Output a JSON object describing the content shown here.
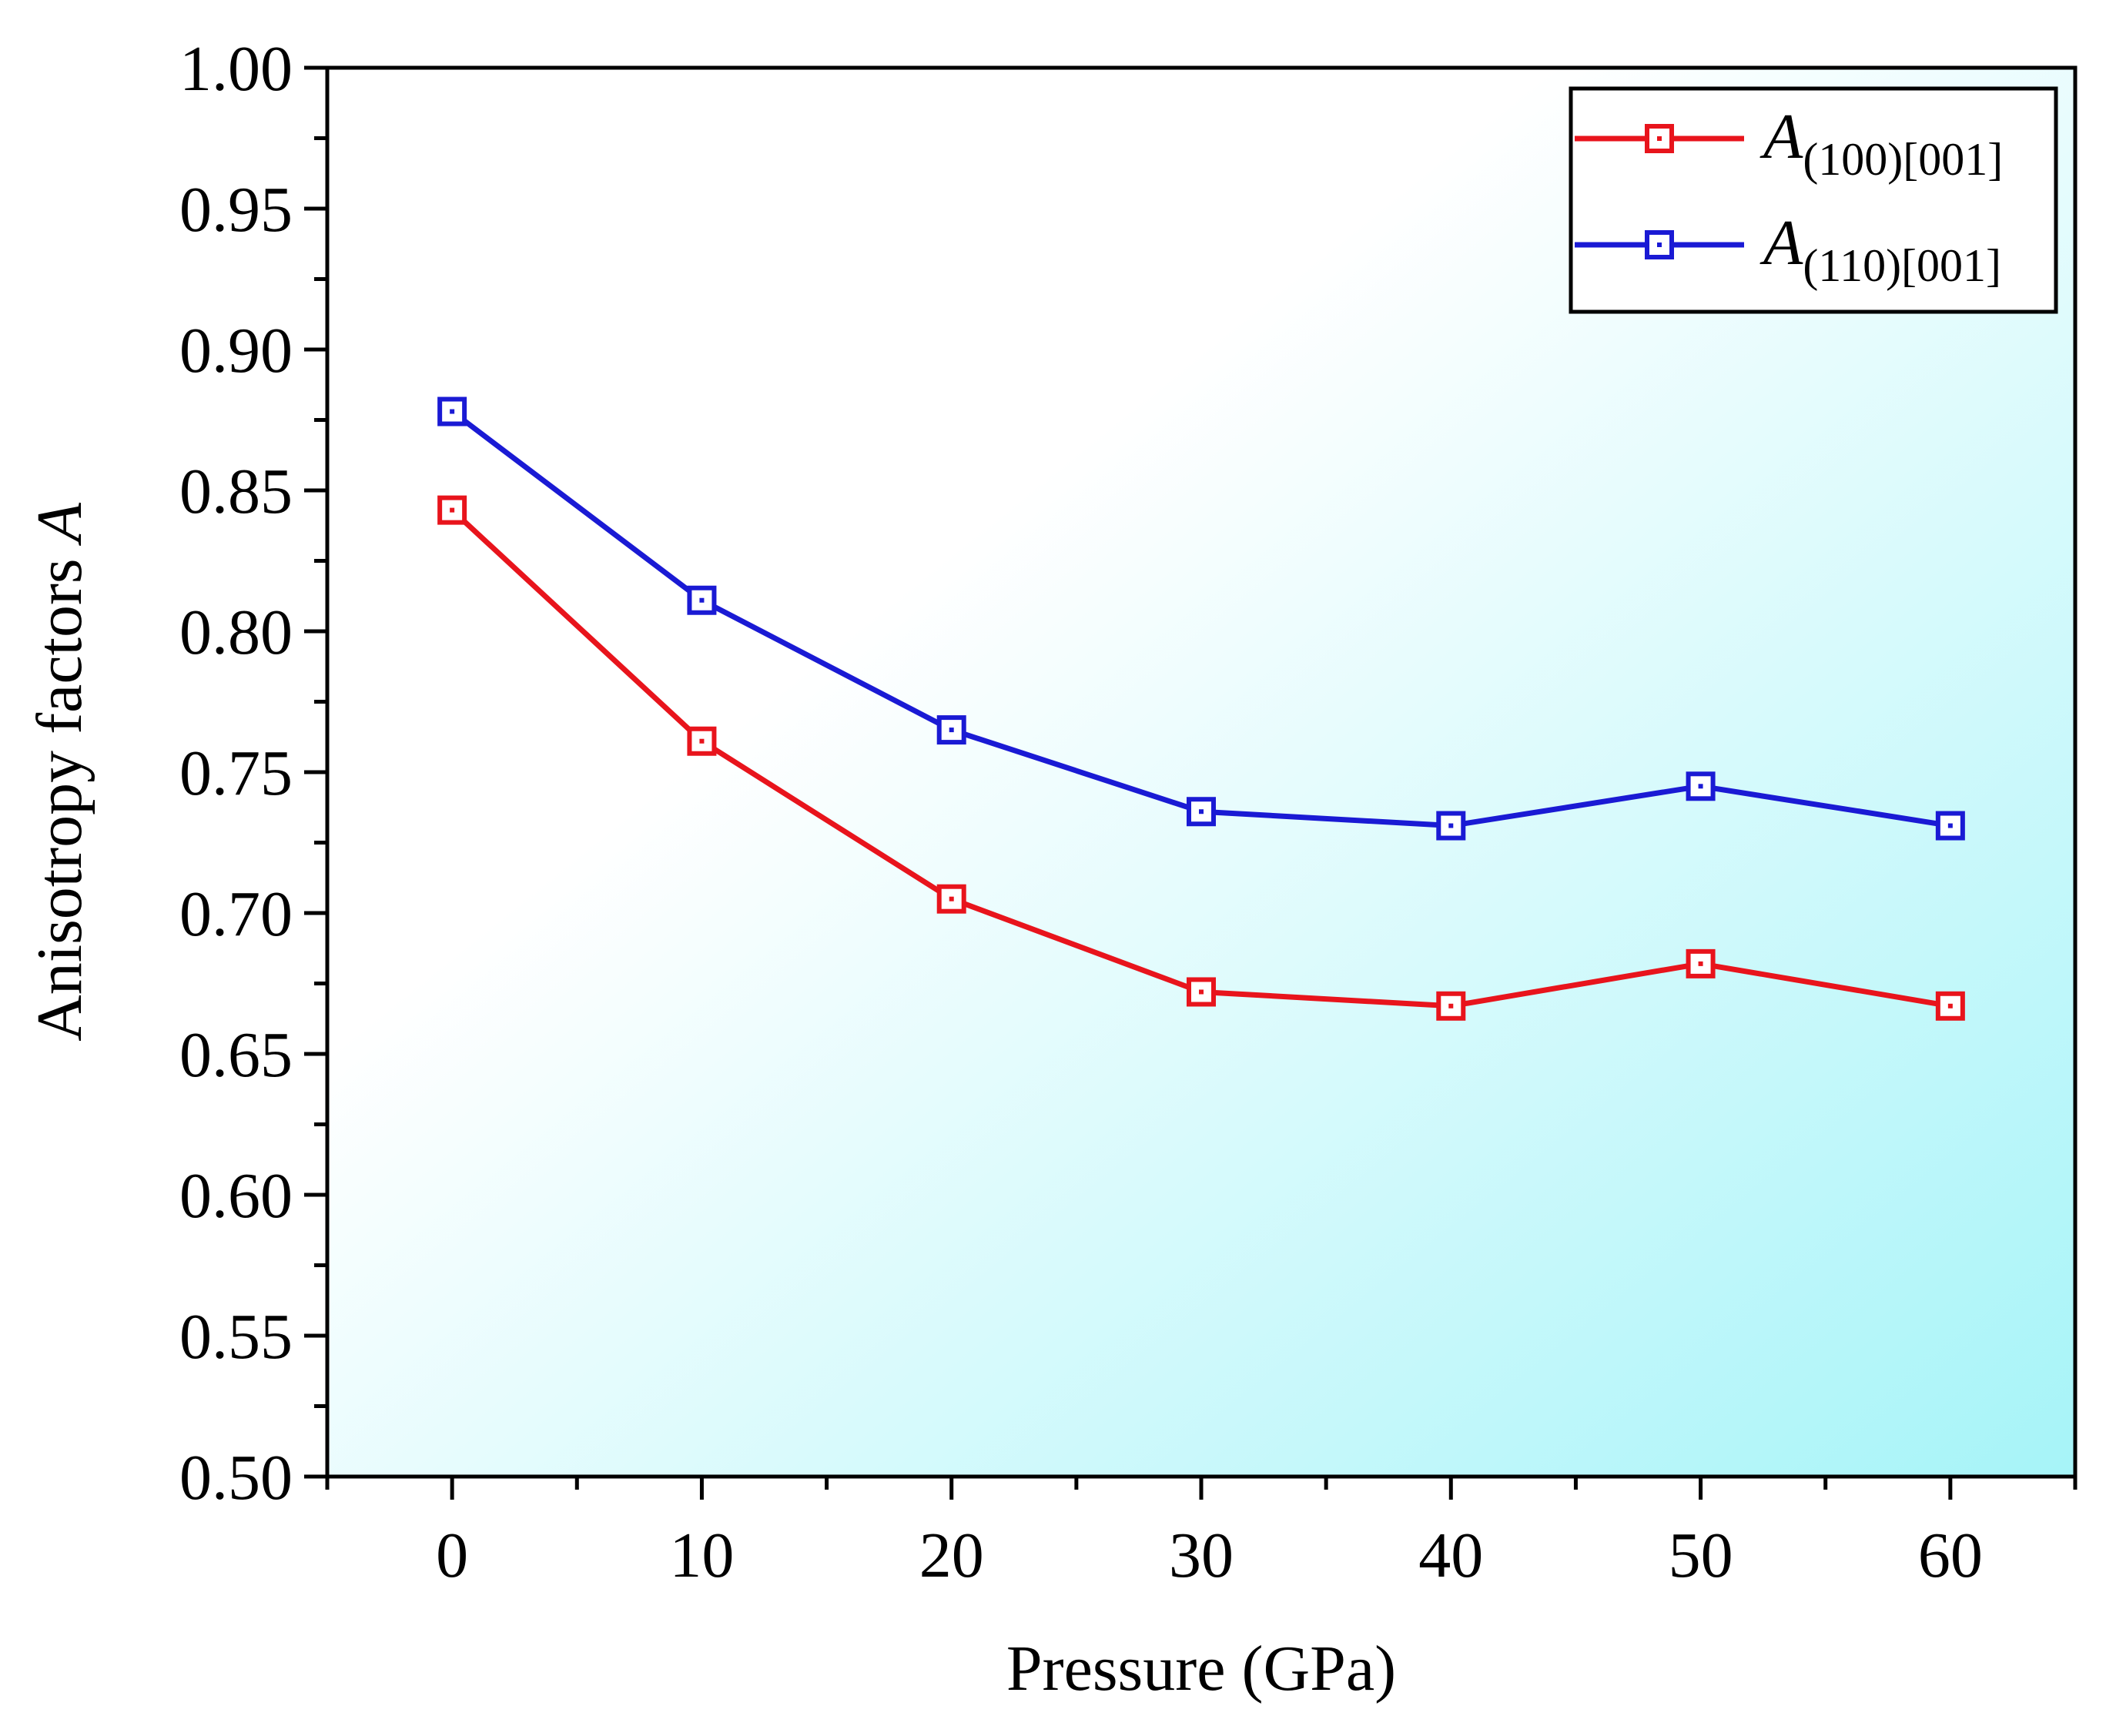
{
  "chart_data": {
    "type": "line",
    "x": [
      0,
      10,
      20,
      30,
      40,
      50,
      60
    ],
    "series": [
      {
        "name": "A(100)[001]",
        "symbol": "A",
        "subscript": "(100)[001]",
        "color": "#e8141c",
        "values": [
          0.843,
          0.761,
          0.705,
          0.672,
          0.667,
          0.682,
          0.667
        ]
      },
      {
        "name": "A(110)[001]",
        "symbol": "A",
        "subscript": "(110)[001]",
        "color": "#1a1ad4",
        "values": [
          0.878,
          0.811,
          0.765,
          0.736,
          0.731,
          0.745,
          0.731
        ]
      }
    ],
    "xlabel": "Pressure (GPa)",
    "ylabel_text": "Anisotropy factors ",
    "ylabel_symbol": "A",
    "xlim": [
      -5,
      65
    ],
    "ylim": [
      0.5,
      1.0
    ],
    "x_ticks": [
      0,
      10,
      20,
      30,
      40,
      50,
      60
    ],
    "x_tick_labels": [
      "0",
      "10",
      "20",
      "30",
      "40",
      "50",
      "60"
    ],
    "y_ticks": [
      0.5,
      0.55,
      0.6,
      0.65,
      0.7,
      0.75,
      0.8,
      0.85,
      0.9,
      0.95,
      1.0
    ],
    "y_tick_labels": [
      "0.50",
      "0.55",
      "0.60",
      "0.65",
      "0.70",
      "0.75",
      "0.80",
      "0.85",
      "0.90",
      "0.95",
      "1.00"
    ],
    "legend_position": "top-right",
    "grid": false,
    "background_gradient": [
      "#ffffff",
      "#a6f4f8"
    ]
  }
}
